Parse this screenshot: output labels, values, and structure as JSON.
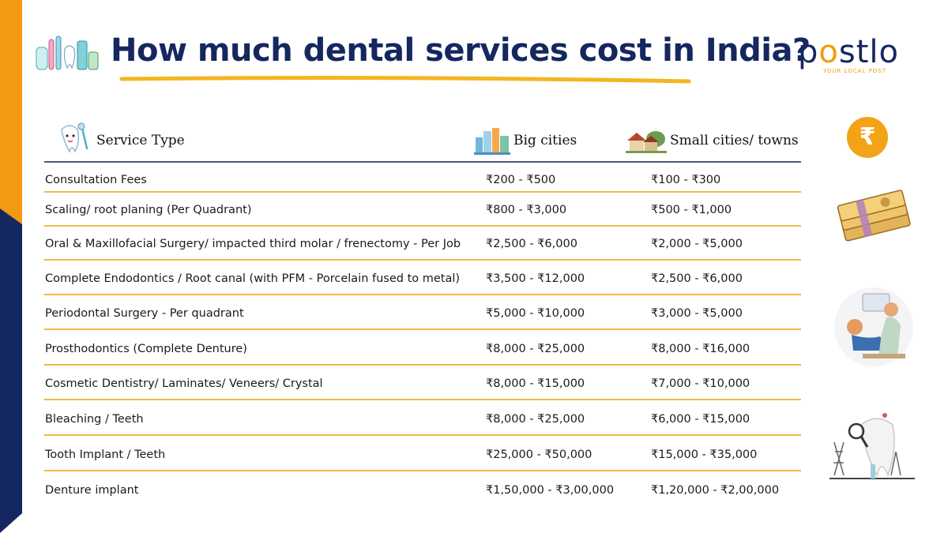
{
  "title": "How much dental services cost in India?",
  "logo": {
    "word_start": "p",
    "word_o": "o",
    "word_end": "stlo",
    "tagline": "YOUR LOCAL POST"
  },
  "rupee_symbol": "₹",
  "table": {
    "headers": {
      "service": "Service Type",
      "big": "Big cities",
      "small": "Small cities/ towns"
    },
    "rows": [
      {
        "service": "Consultation Fees",
        "big": "₹200 - ₹500",
        "small": "₹100 - ₹300"
      },
      {
        "service": "Scaling/ root planing (Per Quadrant)",
        "big": "₹800 - ₹3,000",
        "small": "₹500 - ₹1,000"
      },
      {
        "service": "Oral & Maxillofacial Surgery/ impacted third molar / frenectomy - Per Job",
        "big": "₹2,500 - ₹6,000",
        "small": "₹2,000 - ₹5,000"
      },
      {
        "service": "Complete Endodontics / Root canal (with PFM - Porcelain fused to metal)",
        "big": "₹3,500 - ₹12,000",
        "small": "₹2,500 - ₹6,000"
      },
      {
        "service": "Periodontal Surgery - Per quadrant",
        "big": "₹5,000 - ₹10,000",
        "small": "₹3,000 - ₹5,000"
      },
      {
        "service": "Prosthodontics (Complete Denture)",
        "big": "₹8,000 - ₹25,000",
        "small": "₹8,000 - ₹16,000"
      },
      {
        "service": "Cosmetic Dentistry/ Laminates/ Veneers/ Crystal",
        "big": "₹8,000 - ₹15,000",
        "small": "₹7,000 - ₹10,000"
      },
      {
        "service": "Bleaching / Teeth",
        "big": "₹8,000 - ₹25,000",
        "small": "₹6,000 - ₹15,000"
      },
      {
        "service": "Tooth Implant / Teeth",
        "big": "₹25,000 - ₹50,000",
        "small": "₹15,000 - ₹35,000"
      },
      {
        "service": "Denture implant",
        "big": "₹1,50,000 - ₹3,00,000",
        "small": "₹1,20,000 - ₹2,00,000"
      }
    ]
  },
  "colors": {
    "navy": "#15275f",
    "orange": "#f29b10",
    "row_line": "#f2b84a",
    "header_line": "#4a587a"
  },
  "icons": [
    "dental-tools-icon",
    "tooth-icon",
    "city-buildings-icon",
    "village-houses-icon",
    "rupee-coin-icon",
    "money-stack-icon",
    "dentist-patient-illustration",
    "dental-care-illustration"
  ]
}
